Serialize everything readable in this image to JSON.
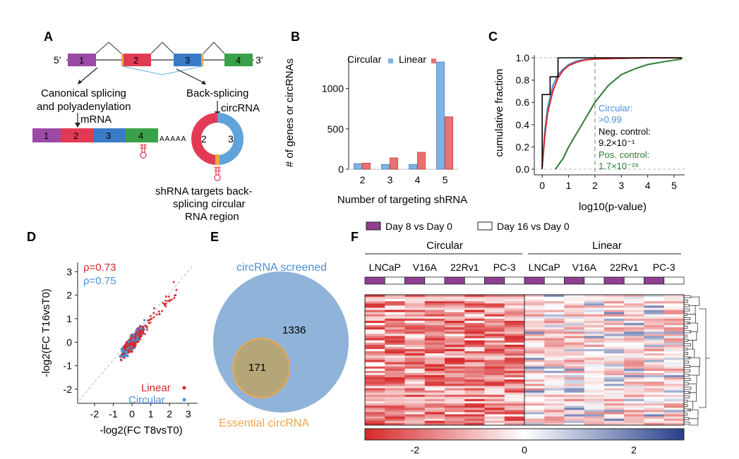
{
  "panels": {
    "A": "A",
    "B": "B",
    "C": "C",
    "D": "D",
    "E": "E",
    "F": "F"
  },
  "panel_a": {
    "five_prime": "5'",
    "three_prime": "3'",
    "exons": [
      "1",
      "2",
      "3",
      "4"
    ],
    "canonical_line1": "Canonical splicing",
    "canonical_line2": "and polyadenylation",
    "mrna": "mRNA",
    "back_splicing": "Back-splicing",
    "circrna": "circRNA",
    "polya": "AAAAA",
    "circ_exons": [
      "2",
      "3"
    ],
    "shrna_line1": "shRNA targets back-",
    "shrna_line2": "splicing circular",
    "shrna_line3": "RNA region"
  },
  "panel_d": {
    "rho_linear": "ρ=0.73",
    "rho_circular": "ρ=0.75",
    "legend_linear": "Linear",
    "legend_circular": "Circular",
    "xlabel": "-log2(FC T8vsT0)",
    "ylabel": "-log2(FC T16vsT0)",
    "xticks": [
      "-2",
      "-1",
      "0",
      "1",
      "2",
      "3"
    ],
    "yticks": [
      "3",
      "2",
      "1",
      "0",
      "-1",
      "-2"
    ],
    "colors": {
      "linear": "#d62728",
      "circular": "#4a90d9"
    }
  },
  "panel_e": {
    "screened_label": "circRNA screened",
    "screened_count": "1336",
    "essential_count": "171",
    "essential_label": "Essential circRNA",
    "colors": {
      "screened": "#8fb3d9",
      "essential": "#b5a67a",
      "essential_edge": "#f0a64a"
    }
  },
  "panel_f": {
    "legend_day8": "Day 8 vs Day 0",
    "legend_day16": "Day 16 vs Day 0",
    "group_circular": "Circular",
    "group_linear": "Linear",
    "cell_lines": [
      "LNCaP",
      "V16A",
      "22Rv1",
      "PC-3",
      "LNCaP",
      "V16A",
      "22Rv1",
      "PC-3"
    ],
    "colorbar_ticks": [
      "-2",
      "0",
      "2"
    ],
    "colors": {
      "day8": "#8e3f91",
      "low": "#d62728",
      "mid": "#ffffff",
      "high": "#27408b"
    }
  },
  "chart_data": [
    {
      "type": "bar",
      "title": "",
      "xlabel": "Number of targeting shRNA",
      "ylabel": "# of genes or circRNAs",
      "categories": [
        "2",
        "3",
        "4",
        "5"
      ],
      "series": [
        {
          "name": "Circular",
          "color": "#7fb2e5",
          "values": [
            70,
            60,
            60,
            1330
          ]
        },
        {
          "name": "Linear",
          "color": "#e57373",
          "values": [
            75,
            140,
            210,
            650
          ]
        }
      ],
      "ylim": [
        0,
        1400
      ],
      "yticks": [
        "0",
        "500",
        "1000"
      ],
      "legend": "top"
    },
    {
      "type": "line",
      "title": "",
      "xlabel": "log10(p-value)",
      "ylabel": "cumulative fraction",
      "xlim": [
        -0.3,
        5.4
      ],
      "ylim": [
        0,
        1.05
      ],
      "xticks": [
        "0",
        "1",
        "2",
        "3",
        "4",
        "5"
      ],
      "yticks": [
        "0.0",
        "0.2",
        "0.4",
        "0.6",
        "0.8",
        "1.0"
      ],
      "threshold_x": 2,
      "series": [
        {
          "name": "Circular",
          "color": "#4a90d9",
          "x": [
            0,
            0.1,
            0.2,
            0.4,
            0.6,
            0.8,
            1.0,
            1.3,
            1.6,
            2,
            3,
            4,
            5.3
          ],
          "y": [
            0.02,
            0.35,
            0.55,
            0.75,
            0.85,
            0.9,
            0.94,
            0.97,
            0.985,
            0.99,
            0.995,
            1.0,
            1.0
          ]
        },
        {
          "name": "Linear",
          "color": "#d62728",
          "x": [
            0,
            0.1,
            0.2,
            0.4,
            0.6,
            0.8,
            1.0,
            1.3,
            1.6,
            2,
            3,
            4,
            5.3
          ],
          "y": [
            0.02,
            0.3,
            0.5,
            0.7,
            0.82,
            0.89,
            0.93,
            0.96,
            0.98,
            0.99,
            0.995,
            1.0,
            1.0
          ]
        },
        {
          "name": "Neg. control",
          "color": "#000000",
          "x": [
            0,
            0,
            0.3,
            0.3,
            0.6,
            0.6,
            1.2,
            1.5,
            5.3
          ],
          "y": [
            0,
            0.67,
            0.67,
            0.83,
            0.83,
            1.0,
            1.0,
            1.0,
            1.0
          ]
        },
        {
          "name": "Pos. control",
          "color": "#2e7d32",
          "x": [
            0.5,
            0.8,
            1.0,
            1.5,
            2.0,
            2.5,
            3.0,
            3.5,
            4.0,
            4.5,
            5.0,
            5.3
          ],
          "y": [
            0,
            0.1,
            0.2,
            0.4,
            0.6,
            0.75,
            0.85,
            0.9,
            0.94,
            0.96,
            0.98,
            0.99
          ]
        }
      ],
      "annotations": [
        {
          "label": "Circular:",
          "value": ">0.99",
          "color": "#4a90d9"
        },
        {
          "label": "Neg. control:",
          "value": "9.2×10⁻¹",
          "color": "#000000"
        },
        {
          "label": "Pos. control:",
          "value": "1.7×10⁻²⁸",
          "color": "#2e7d32"
        }
      ]
    }
  ]
}
